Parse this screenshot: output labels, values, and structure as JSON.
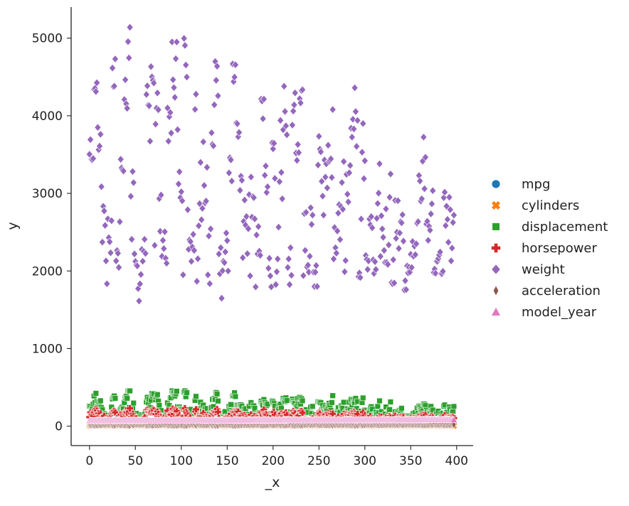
{
  "chart_data": {
    "type": "scatter",
    "xlabel": "_x",
    "ylabel": "y",
    "xlim": [
      -20,
      418
    ],
    "ylim": [
      -250,
      5400
    ],
    "xticks": [
      0,
      50,
      100,
      150,
      200,
      250,
      300,
      350,
      400
    ],
    "yticks": [
      0,
      1000,
      2000,
      3000,
      4000,
      5000
    ],
    "legend_position": "right",
    "grid": false,
    "series": [
      {
        "name": "mpg",
        "marker": "circle",
        "color": "#1f77b4",
        "n": 398,
        "range": [
          9,
          46.6
        ]
      },
      {
        "name": "cylinders",
        "marker": "x",
        "color": "#ff7f0e",
        "n": 398,
        "range": [
          3,
          8
        ]
      },
      {
        "name": "displacement",
        "marker": "square",
        "color": "#2ca02c",
        "n": 398,
        "range": [
          68,
          455
        ]
      },
      {
        "name": "horsepower",
        "marker": "plus",
        "color": "#d62728",
        "n": 398,
        "range": [
          46,
          230
        ]
      },
      {
        "name": "weight",
        "marker": "diamond",
        "color": "#9467bd",
        "n": 398,
        "range": [
          1613,
          5140
        ]
      },
      {
        "name": "acceleration",
        "marker": "thin_diamond",
        "color": "#8c564b",
        "n": 398,
        "range": [
          8,
          24.8
        ]
      },
      {
        "name": "model_year",
        "marker": "triangle",
        "color": "#e377c2",
        "n": 398,
        "range": [
          70,
          82
        ]
      }
    ],
    "x": "0..397",
    "weight_values": [
      3504,
      3693,
      3436,
      3433,
      3449,
      4341,
      4354,
      4312,
      4425,
      3850,
      3563,
      3609,
      3761,
      3086,
      2372,
      2833,
      2774,
      2587,
      2130,
      1835,
      2672,
      2430,
      2375,
      2234,
      2648,
      4615,
      4376,
      4382,
      4732,
      2130,
      2264,
      2228,
      2046,
      2634,
      3439,
      3329,
      3302,
      3288,
      4209,
      4464,
      4154,
      4096,
      4955,
      4746,
      5140,
      2962,
      2408,
      3282,
      3139,
      2220,
      2123,
      2074,
      2065,
      1773,
      1613,
      1834,
      1955,
      2278,
      2126,
      2254,
      2408,
      2226,
      4274,
      4385,
      4135,
      4129,
      3672,
      4633,
      4502,
      4456,
      4422,
      2330,
      3892,
      4098,
      4294,
      4077,
      2933,
      2511,
      2979,
      2189,
      2395,
      2288,
      2506,
      2164,
      2100,
      4100,
      3672,
      3988,
      4042,
      3777,
      4952,
      4464,
      4363,
      4237,
      4735,
      4951,
      3821,
      3121,
      3278,
      2945,
      3021,
      2904,
      1950,
      4997,
      4906,
      4654,
      4499,
      2789,
      2279,
      2401,
      2379,
      2124,
      2310,
      2472,
      2265,
      4082,
      4278,
      1867,
      2158,
      2582,
      2868,
      3399,
      2660,
      2807,
      3664,
      3102,
      2875,
      2901,
      3336,
      1950,
      2451,
      1836,
      2542,
      3781,
      3632,
      3613,
      4141,
      4699,
      4457,
      4638,
      4257,
      2219,
      1963,
      2300,
      1649,
      2003,
      2125,
      2108,
      2246,
      2489,
      2391,
      2000,
      3264,
      3459,
      3432,
      3158,
      4668,
      4440,
      4498,
      4657,
      3907,
      3897,
      3730,
      3785,
      3039,
      3221,
      3169,
      2171,
      2639,
      2914,
      2592,
      2702,
      2223,
      2545,
      2984,
      1937,
      3211,
      2694,
      2957,
      2945,
      2671,
      1795,
      2464,
      2220,
      2572,
      2255,
      2202,
      4215,
      4190,
      3962,
      4215,
      3233,
      3353,
      3012,
      3085,
      2035,
      2164,
      1937,
      1795,
      3651,
      3574,
      3645,
      3193,
      1825,
      1990,
      2155,
      2565,
      3150,
      3940,
      3270,
      2930,
      3820,
      4380,
      4055,
      3870,
      3755,
      2045,
      2155,
      1825,
      2300,
      1945,
      3880,
      4060,
      4140,
      4295,
      3520,
      3425,
      3630,
      3525,
      4220,
      4165,
      4325,
      4335,
      1940,
      2740,
      2265,
      2755,
      2051,
      2075,
      1985,
      2190,
      2815,
      2600,
      2720,
      1985,
      1800,
      1985,
      2070,
      1800,
      3365,
      3735,
      3570,
      3535,
      3155,
      2965,
      2720,
      3430,
      3210,
      3380,
      3070,
      3620,
      3410,
      3425,
      3445,
      3205,
      4080,
      2155,
      2560,
      2300,
      2230,
      2515,
      2745,
      2855,
      2405,
      2830,
      3140,
      2795,
      3410,
      1990,
      2135,
      3245,
      2990,
      2890,
      3265,
      3360,
      3840,
      3725,
      3955,
      3830,
      4360,
      4054,
      3605,
      3940,
      1925,
      1975,
      1915,
      2670,
      3530,
      3900,
      3190,
      3420,
      2200,
      2150,
      2020,
      2130,
      2670,
      2595,
      2700,
      2556,
      2144,
      1968,
      2120,
      2019,
      2678,
      2870,
      3003,
      3381,
      2188,
      2711,
      2542,
      2434,
      2265,
      2110,
      2800,
      2110,
      2085,
      2335,
      2950,
      3250,
      1850,
      1835,
      2145,
      1845,
      2910,
      2420,
      2500,
      2905,
      2290,
      2490,
      2635,
      2620,
      2725,
      2385,
      1755,
      1875,
      1760,
      2065,
      1975,
      2050,
      1985,
      2215,
      2045,
      2380,
      2190,
      2320,
      2210,
      2350,
      2615,
      2635,
      3230,
      3160,
      2900,
      2930,
      3415,
      3725,
      3060,
      3465,
      2605,
      2640,
      2395,
      2575,
      2525,
      2735,
      2865,
      3035,
      1980,
      2025,
      1970,
      2125,
      2125,
      2160,
      2205,
      2245,
      1965,
      1965,
      1995,
      2945,
      3015,
      2585,
      2835,
      2665,
      2370,
      2950,
      2790,
      2130,
      2295,
      2625,
      2720
    ]
  }
}
